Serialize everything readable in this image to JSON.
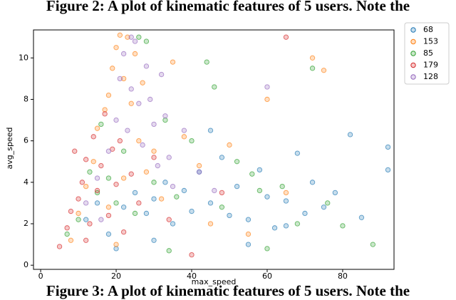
{
  "captions": {
    "top": "Figure 2: A plot of kinematic features of 5 users. Note the",
    "bottom": "Figure 3: A plot of kinematic features of 5 users. Note the"
  },
  "chart_data": {
    "type": "scatter",
    "x_label": "max_speed",
    "y_label": "avg_speed",
    "xlim": [
      -1.9,
      93.6
    ],
    "ylim": [
      -0.2,
      11.35
    ],
    "xticks": [
      0,
      20,
      40,
      60,
      80
    ],
    "yticks": [
      0,
      2,
      4,
      6,
      8,
      10
    ],
    "legend": "upper right outside",
    "series": [
      {
        "name": "68",
        "color": "#1f77b4",
        "x": [
          12,
          15,
          18,
          22,
          25,
          28,
          30,
          33,
          35,
          38,
          40,
          42,
          45,
          48,
          50,
          52,
          55,
          58,
          60,
          62,
          65,
          68,
          70,
          72,
          75,
          78,
          82,
          85,
          92,
          92,
          20,
          30,
          45,
          55,
          65
        ],
        "values": [
          2.2,
          3.0,
          1.5,
          2.8,
          3.5,
          2.5,
          3.2,
          4.0,
          2.0,
          3.6,
          2.6,
          4.5,
          3.0,
          5.2,
          2.4,
          3.8,
          2.2,
          4.6,
          3.3,
          1.8,
          3.1,
          5.4,
          2.5,
          4.0,
          2.8,
          3.5,
          6.3,
          2.3,
          5.7,
          4.6,
          0.8,
          1.2,
          6.5,
          1.0,
          1.9
        ]
      },
      {
        "name": "153",
        "color": "#ff7f0e",
        "x": [
          8,
          10,
          12,
          14,
          15,
          17,
          18,
          19,
          20,
          21,
          22,
          23,
          24,
          25,
          26,
          27,
          28,
          30,
          32,
          35,
          38,
          42,
          45,
          50,
          55,
          60,
          65,
          72,
          75,
          20,
          22,
          18
        ],
        "values": [
          1.2,
          2.5,
          3.8,
          5.0,
          6.6,
          7.5,
          8.2,
          9.5,
          10.5,
          11.1,
          9.0,
          11.0,
          7.8,
          10.2,
          6.0,
          8.8,
          4.5,
          5.5,
          3.2,
          9.8,
          6.2,
          4.8,
          2.0,
          5.8,
          1.5,
          8.0,
          3.5,
          10.0,
          9.4,
          1.0,
          4.2,
          2.8
        ]
      },
      {
        "name": "85",
        "color": "#2ca02c",
        "x": [
          7,
          10,
          13,
          15,
          16,
          18,
          20,
          22,
          25,
          28,
          30,
          33,
          36,
          40,
          44,
          48,
          52,
          56,
          60,
          64,
          68,
          72,
          76,
          80,
          88,
          26,
          34,
          46,
          58
        ],
        "values": [
          1.5,
          2.2,
          4.5,
          3.5,
          6.8,
          4.2,
          3.0,
          5.5,
          2.5,
          10.8,
          4.0,
          7.0,
          3.3,
          6.0,
          9.8,
          2.8,
          5.0,
          4.4,
          0.8,
          3.8,
          2.0,
          9.5,
          3.0,
          1.9,
          1.0,
          11.0,
          0.7,
          8.6,
          3.6
        ]
      },
      {
        "name": "179",
        "color": "#d62728",
        "x": [
          5,
          7,
          8,
          10,
          11,
          12,
          13,
          14,
          15,
          16,
          17,
          18,
          19,
          20,
          21,
          22,
          24,
          26,
          30,
          34,
          40,
          48,
          65,
          12,
          9
        ],
        "values": [
          0.9,
          1.8,
          2.6,
          3.2,
          4.0,
          5.1,
          2.0,
          6.2,
          3.6,
          4.8,
          7.3,
          2.4,
          5.6,
          3.9,
          6.0,
          1.6,
          4.4,
          3.0,
          5.2,
          2.2,
          0.5,
          3.5,
          11.0,
          1.2,
          5.5
        ]
      },
      {
        "name": "128",
        "color": "#9467bd",
        "x": [
          12,
          15,
          18,
          20,
          21,
          22,
          23,
          24,
          25,
          26,
          27,
          28,
          29,
          30,
          31,
          32,
          33,
          34,
          35,
          38,
          42,
          46,
          60,
          16,
          24
        ],
        "values": [
          3.0,
          4.2,
          5.5,
          7.0,
          9.0,
          10.2,
          6.5,
          8.5,
          10.8,
          7.8,
          5.8,
          9.6,
          8.0,
          6.8,
          4.8,
          9.2,
          7.2,
          5.2,
          3.8,
          6.5,
          4.5,
          3.6,
          8.6,
          2.2,
          11.0
        ]
      }
    ]
  }
}
